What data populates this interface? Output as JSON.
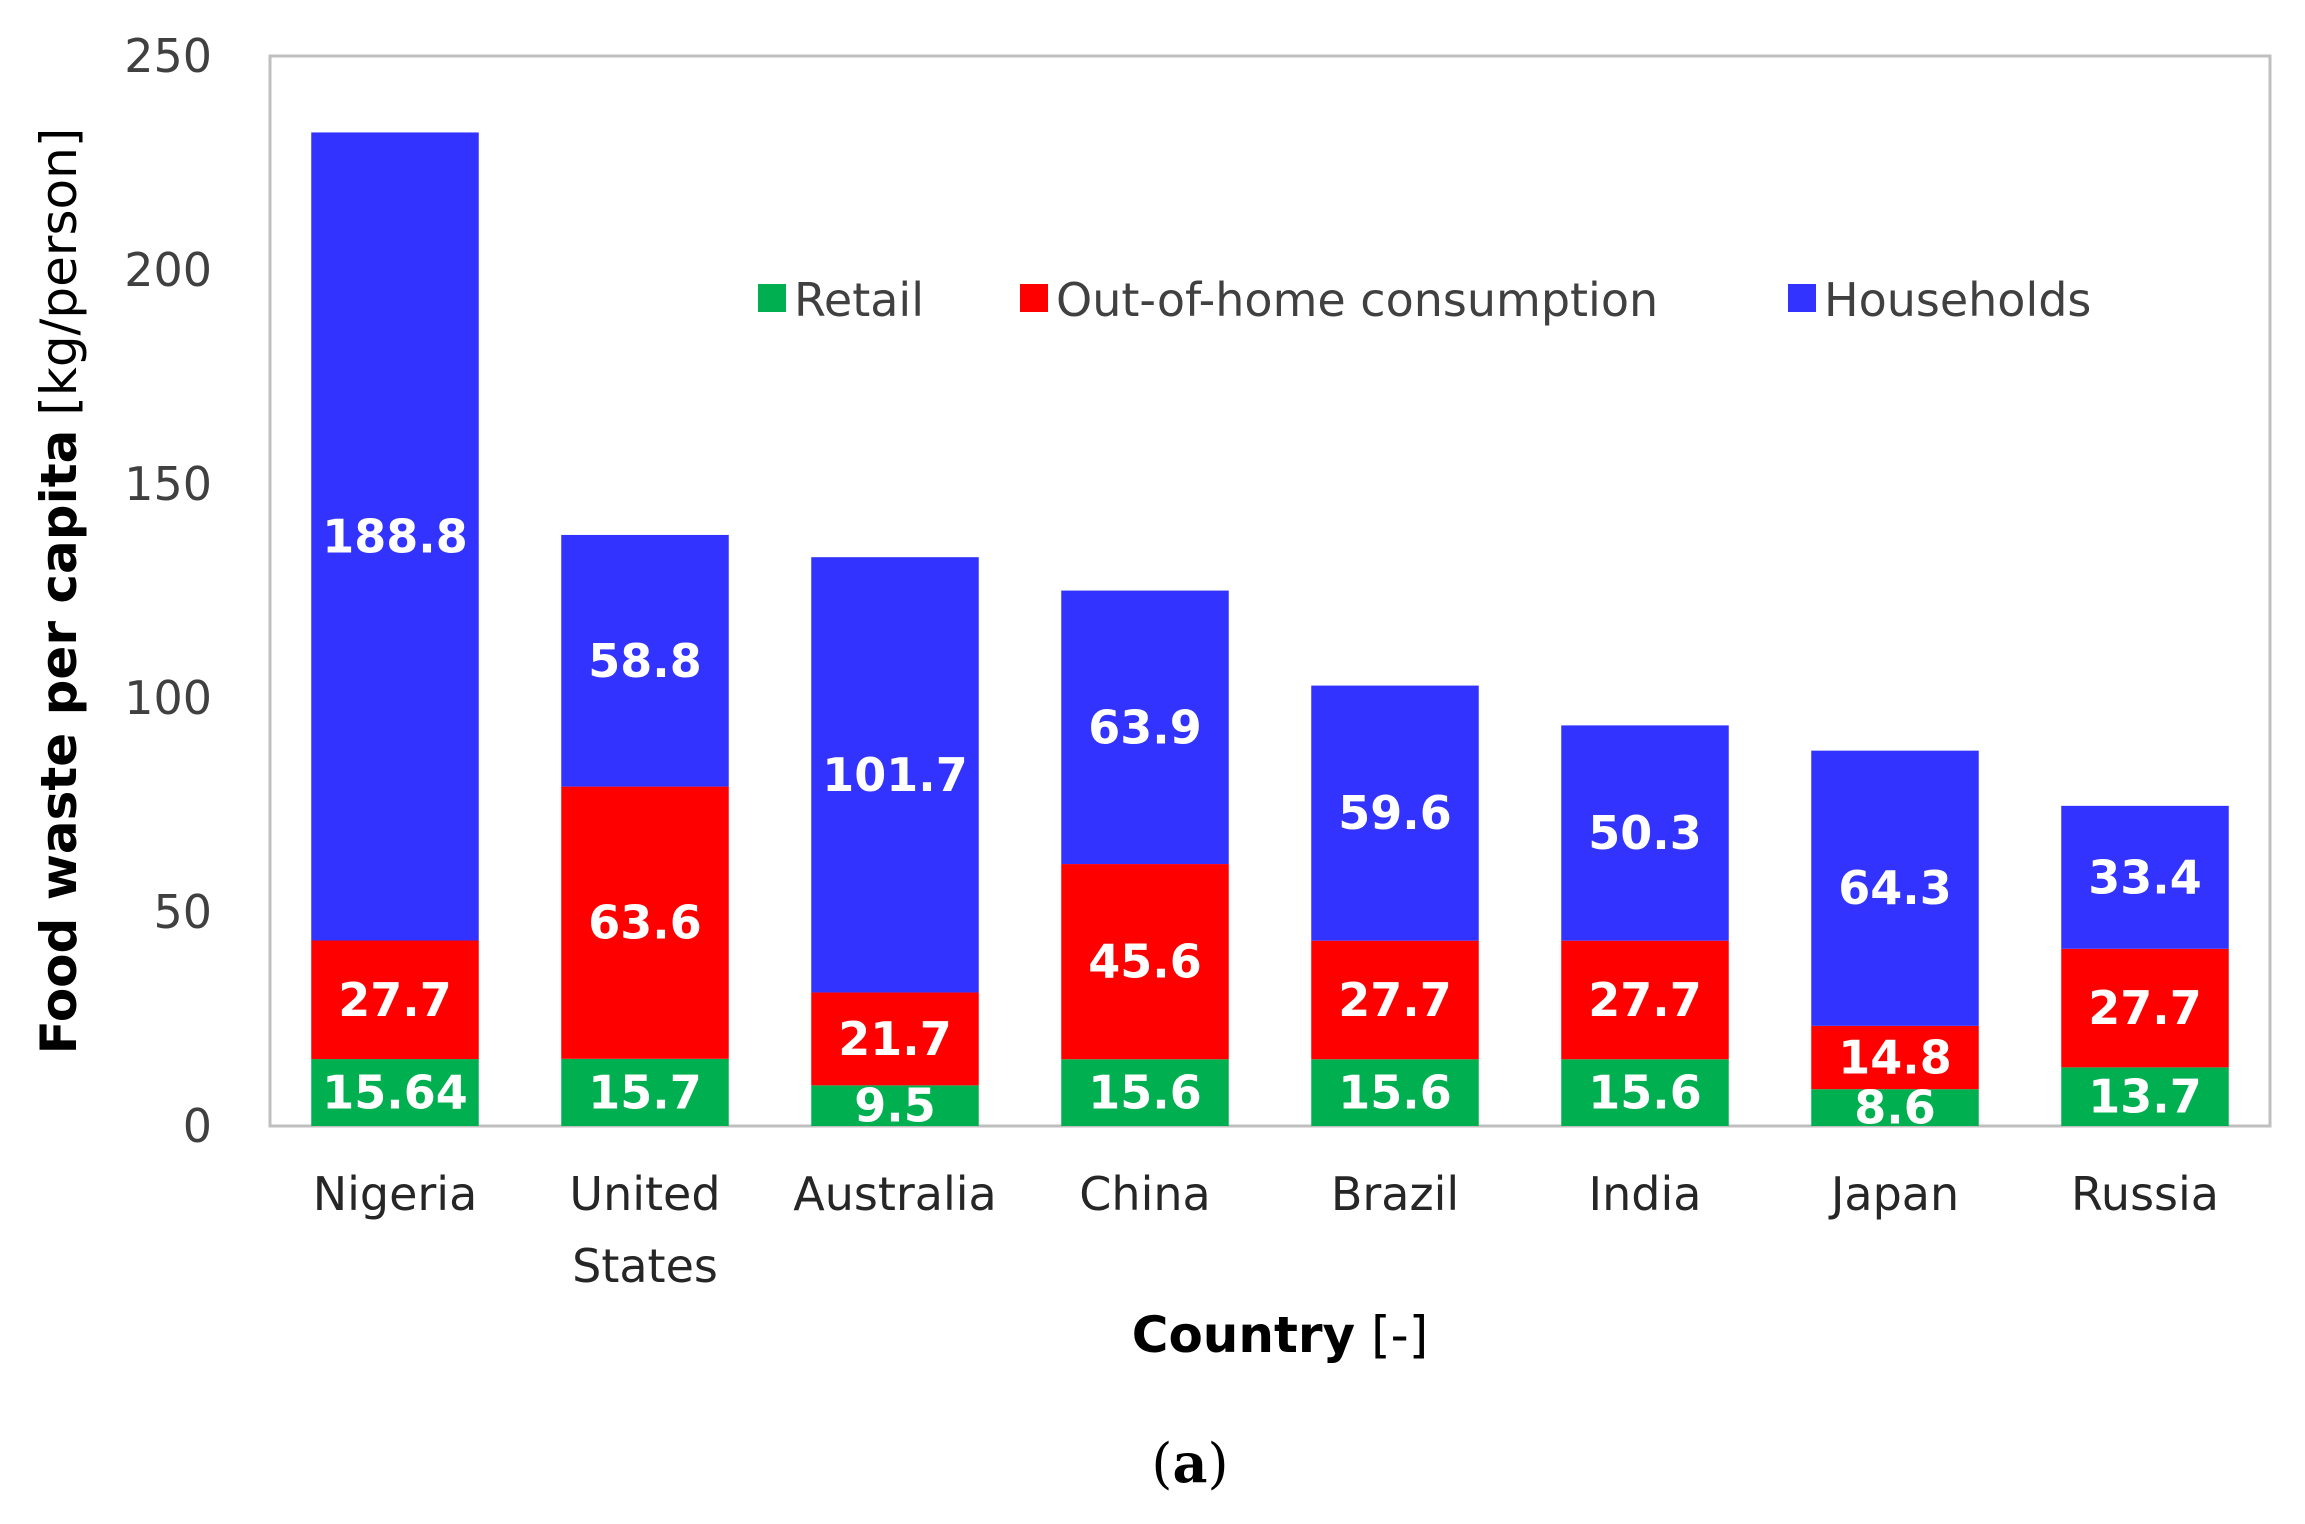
{
  "chart_data": {
    "type": "bar",
    "stacked": true,
    "title": "",
    "xlabel": "Country",
    "xlabel_unit": "[-]",
    "ylabel": "Food waste per capita",
    "ylabel_unit": "[kg/person]",
    "ylim": [
      0,
      250
    ],
    "yticks": [
      0,
      50,
      100,
      150,
      200,
      250
    ],
    "grid": false,
    "legend_position": "top-right",
    "categories": [
      [
        "Nigeria"
      ],
      [
        "United",
        "States"
      ],
      [
        "Australia"
      ],
      [
        "China"
      ],
      [
        "Brazil"
      ],
      [
        "India"
      ],
      [
        "Japan"
      ],
      [
        "Russia"
      ]
    ],
    "series": [
      {
        "name": "Retail",
        "color": "#00B050",
        "values": [
          15.64,
          15.7,
          9.5,
          15.6,
          15.6,
          15.6,
          8.6,
          13.7
        ],
        "labels": [
          "15.64",
          "15.7",
          "9.5",
          "15.6",
          "15.6",
          "15.6",
          "8.6",
          "13.7"
        ]
      },
      {
        "name": "Out-of-home consumption",
        "color": "#FF0000",
        "values": [
          27.7,
          63.6,
          21.7,
          45.6,
          27.7,
          27.7,
          14.8,
          27.7
        ],
        "labels": [
          "27.7",
          "63.6",
          "21.7",
          "45.6",
          "27.7",
          "27.7",
          "14.8",
          "27.7"
        ]
      },
      {
        "name": "Households",
        "color": "#3333FF",
        "values": [
          188.8,
          58.8,
          101.7,
          63.9,
          59.6,
          50.3,
          64.3,
          33.4
        ],
        "labels": [
          "188.8",
          "58.8",
          "101.7",
          "63.9",
          "59.6",
          "50.3",
          "64.3",
          "33.4"
        ]
      }
    ],
    "panel_label": "(a)",
    "panel_letter": "a",
    "axis_color": "#BFBFBF"
  }
}
